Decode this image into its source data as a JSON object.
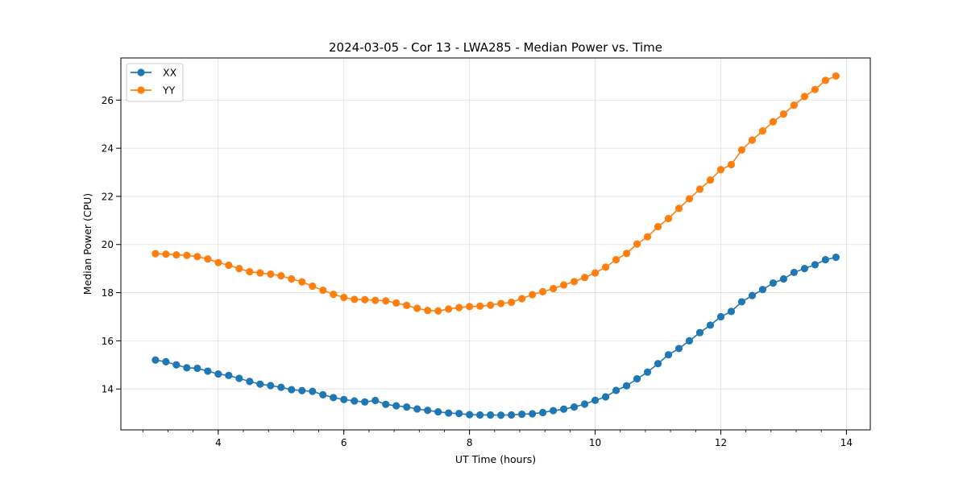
{
  "chart_data": {
    "type": "line",
    "title": "2024-03-05 - Cor 13 - LWA285 - Median Power vs. Time",
    "xlabel": "UT Time (hours)",
    "ylabel": "Median Power (CPU)",
    "xlim": [
      2.45,
      14.38
    ],
    "ylim": [
      12.3,
      27.75
    ],
    "xticks": [
      4,
      6,
      8,
      10,
      12,
      14
    ],
    "xtick_labels": [
      "4",
      "6",
      "8",
      "10",
      "12",
      "14"
    ],
    "x_minor_step": 0.4,
    "yticks": [
      14,
      16,
      18,
      20,
      22,
      24,
      26
    ],
    "ytick_labels": [
      "14",
      "16",
      "18",
      "20",
      "22",
      "24",
      "26"
    ],
    "grid": true,
    "legend_position": "upper-left",
    "x": [
      3.0,
      3.1667,
      3.3333,
      3.5,
      3.6667,
      3.8333,
      4.0,
      4.1667,
      4.3333,
      4.5,
      4.6667,
      4.8333,
      5.0,
      5.1667,
      5.3333,
      5.5,
      5.6667,
      5.8333,
      6.0,
      6.1667,
      6.3333,
      6.5,
      6.6667,
      6.8333,
      7.0,
      7.1667,
      7.3333,
      7.5,
      7.6667,
      7.8333,
      8.0,
      8.1667,
      8.3333,
      8.5,
      8.6667,
      8.8333,
      9.0,
      9.1667,
      9.3333,
      9.5,
      9.6667,
      9.8333,
      10.0,
      10.1667,
      10.3333,
      10.5,
      10.6667,
      10.8333,
      11.0,
      11.1667,
      11.3333,
      11.5,
      11.6667,
      11.8333,
      12.0,
      12.1667,
      12.3333,
      12.5,
      12.6667,
      12.8333,
      13.0,
      13.1667,
      13.3333,
      13.5,
      13.6667,
      13.8333
    ],
    "series": [
      {
        "name": "XX",
        "color": "#1f77b4",
        "values": [
          15.2,
          15.13,
          15.0,
          14.88,
          14.86,
          14.74,
          14.62,
          14.56,
          14.44,
          14.31,
          14.2,
          14.14,
          14.07,
          13.97,
          13.93,
          13.9,
          13.76,
          13.64,
          13.56,
          13.5,
          13.46,
          13.52,
          13.36,
          13.3,
          13.25,
          13.17,
          13.11,
          13.05,
          13.0,
          12.98,
          12.93,
          12.92,
          12.92,
          12.91,
          12.92,
          12.95,
          12.97,
          13.02,
          13.1,
          13.16,
          13.25,
          13.37,
          13.53,
          13.67,
          13.94,
          14.13,
          14.42,
          14.7,
          15.05,
          15.42,
          15.68,
          16.0,
          16.34,
          16.65,
          17.0,
          17.22,
          17.62,
          17.88,
          18.13,
          18.4,
          18.57,
          18.84,
          19.0,
          19.16,
          19.37,
          19.47
        ]
      },
      {
        "name": "YY",
        "color": "#ff7f0e",
        "values": [
          19.62,
          19.6,
          19.57,
          19.55,
          19.5,
          19.4,
          19.25,
          19.14,
          19.0,
          18.87,
          18.82,
          18.77,
          18.7,
          18.57,
          18.45,
          18.27,
          18.1,
          17.93,
          17.8,
          17.72,
          17.71,
          17.68,
          17.66,
          17.57,
          17.47,
          17.35,
          17.26,
          17.24,
          17.32,
          17.38,
          17.42,
          17.44,
          17.48,
          17.55,
          17.6,
          17.75,
          17.92,
          18.04,
          18.17,
          18.32,
          18.46,
          18.63,
          18.82,
          19.06,
          19.37,
          19.63,
          20.02,
          20.32,
          20.74,
          21.08,
          21.5,
          21.9,
          22.3,
          22.68,
          23.11,
          23.32,
          23.93,
          24.34,
          24.72,
          25.1,
          25.42,
          25.79,
          26.15,
          26.44,
          26.82,
          27.0
        ]
      }
    ]
  }
}
